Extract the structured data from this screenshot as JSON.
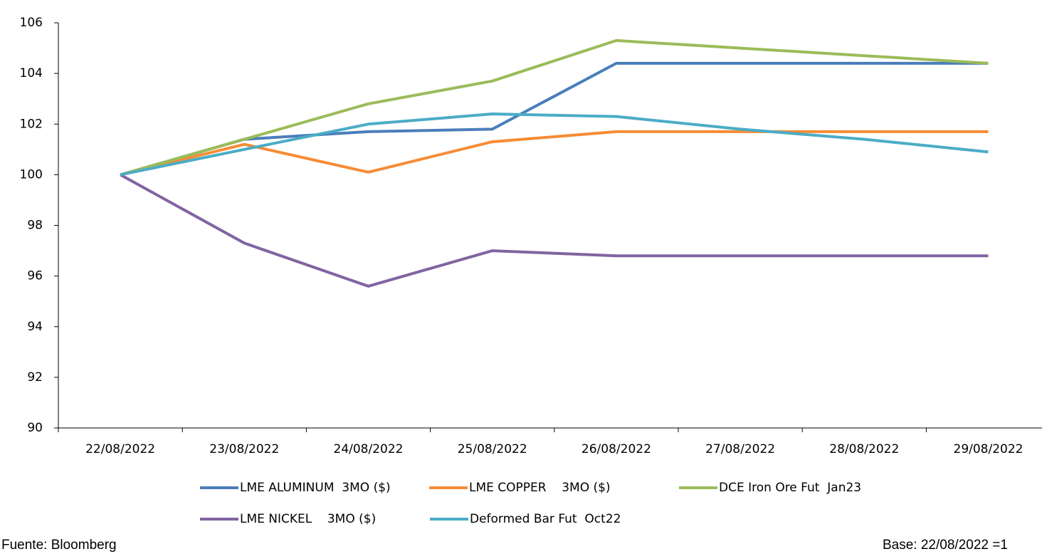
{
  "chart_data": {
    "type": "line",
    "categories": [
      "22/08/2022",
      "23/08/2022",
      "24/08/2022",
      "25/08/2022",
      "26/08/2022",
      "27/08/2022",
      "28/08/2022",
      "29/08/2022"
    ],
    "series": [
      {
        "name": "LME ALUMINUM  3MO ($)",
        "color": "#4a7ebb",
        "values": [
          100,
          101.4,
          101.7,
          101.8,
          104.4,
          104.4,
          104.4,
          104.4
        ]
      },
      {
        "name": "LME COPPER    3MO ($)",
        "color": "#f68c36",
        "values": [
          100,
          101.2,
          100.1,
          101.3,
          101.7,
          101.7,
          101.7,
          101.7
        ]
      },
      {
        "name": "DCE Iron Ore Fut  Jan23",
        "color": "#9bbb59",
        "values": [
          100,
          101.4,
          102.8,
          103.7,
          105.3,
          105.0,
          104.7,
          104.4
        ]
      },
      {
        "name": "LME NICKEL    3MO ($)",
        "color": "#8064a2",
        "values": [
          100,
          97.3,
          95.6,
          97.0,
          96.8,
          96.8,
          96.8,
          96.8
        ]
      },
      {
        "name": "Deformed Bar Fut  Oct22",
        "color": "#4bacc6",
        "values": [
          100,
          101.0,
          102.0,
          102.4,
          102.3,
          101.8,
          101.4,
          100.9
        ]
      }
    ],
    "ylim": [
      90,
      106
    ],
    "yticks": [
      90,
      92,
      94,
      96,
      98,
      100,
      102,
      104,
      106
    ],
    "source": "Fuente: Bloomberg",
    "note": "Base: 22/08/2022 =1"
  }
}
